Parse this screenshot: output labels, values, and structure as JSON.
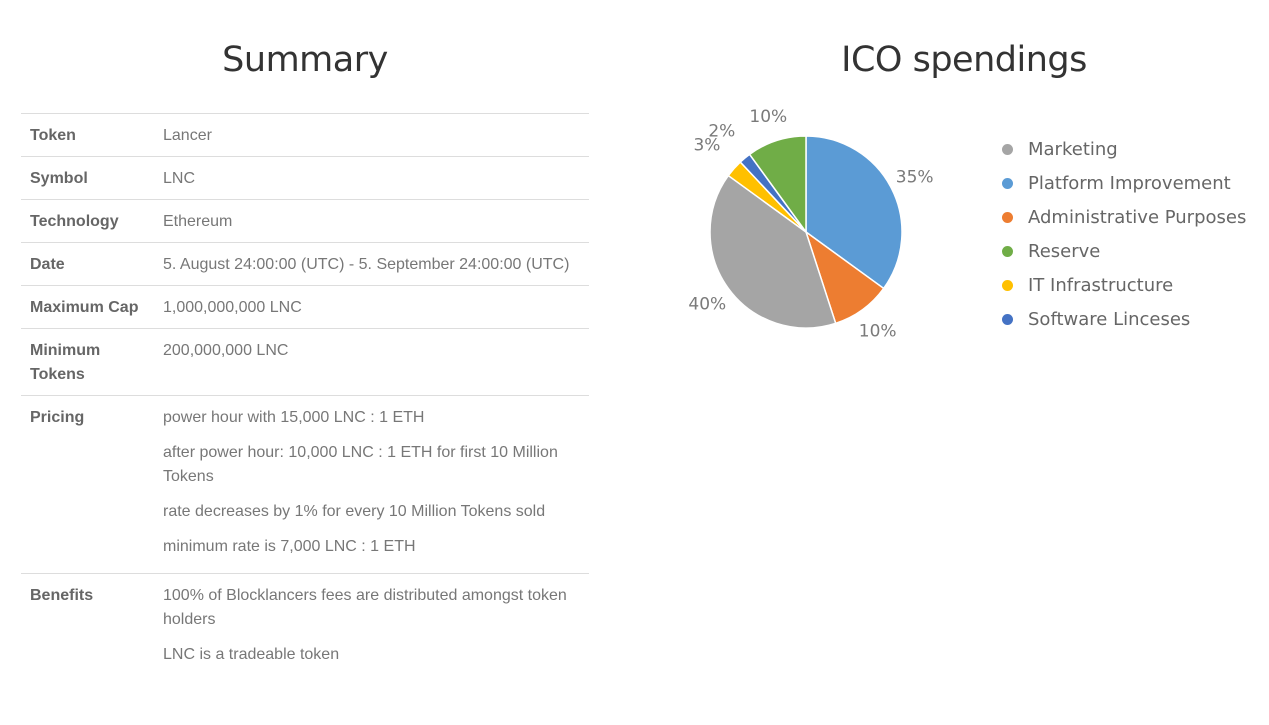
{
  "summary": {
    "title": "Summary",
    "rows": [
      {
        "key": "Token",
        "values": [
          "Lancer"
        ]
      },
      {
        "key": "Symbol",
        "values": [
          "LNC"
        ]
      },
      {
        "key": "Technology",
        "values": [
          "Ethereum"
        ]
      },
      {
        "key": "Date",
        "values": [
          "5. August 24:00:00 (UTC) - 5. September 24:00:00 (UTC)"
        ]
      },
      {
        "key": "Maximum Cap",
        "values": [
          "1,000,000,000 LNC"
        ]
      },
      {
        "key": "Minimum Tokens",
        "values": [
          "200,000,000 LNC"
        ]
      },
      {
        "key": "Pricing",
        "values": [
          "power hour with 15,000 LNC : 1 ETH",
          "after power hour: 10,000 LNC : 1 ETH for first 10 Million Tokens",
          "rate decreases by 1% for every 10 Million Tokens sold",
          "minimum rate is 7,000 LNC : 1 ETH"
        ]
      },
      {
        "key": "Benefits",
        "values": [
          "100% of Blocklancers fees are distributed amongst token holders",
          "LNC is a tradeable token"
        ]
      }
    ]
  },
  "chart_data": {
    "type": "pie",
    "title": "ICO spendings",
    "legend_position": "right",
    "slices": [
      {
        "label": "Marketing",
        "value": 40,
        "display": "40%",
        "color": "#a5a5a5"
      },
      {
        "label": "Platform Improvement",
        "value": 35,
        "display": "35%",
        "color": "#5b9bd5"
      },
      {
        "label": "Administrative Purposes",
        "value": 10,
        "display": "10%",
        "color": "#ed7d31"
      },
      {
        "label": "Reserve",
        "value": 10,
        "display": "10%",
        "color": "#70ad47"
      },
      {
        "label": "IT Infrastructure",
        "value": 3,
        "display": "3%",
        "color": "#ffc000"
      },
      {
        "label": "Software Linceses",
        "value": 2,
        "display": "2%",
        "color": "#4472c4"
      }
    ],
    "draw_order": [
      "Platform Improvement",
      "Administrative Purposes",
      "Marketing",
      "IT Infrastructure",
      "Software Linceses",
      "Reserve"
    ]
  }
}
